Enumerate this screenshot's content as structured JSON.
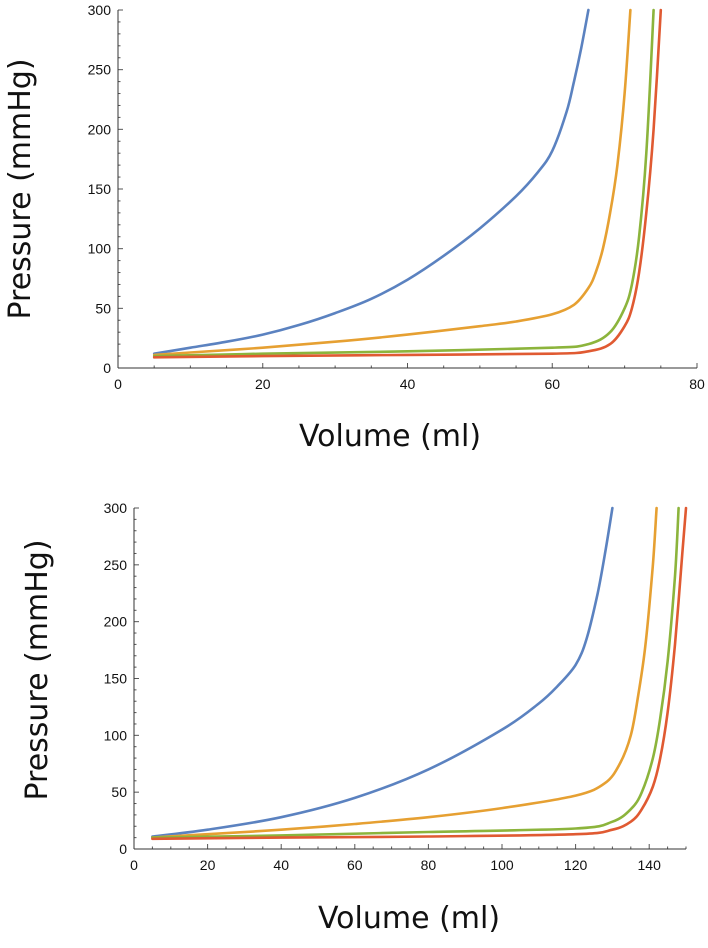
{
  "chart_data": [
    {
      "type": "line",
      "xlabel": "Volume (ml)",
      "ylabel": "Pressure (mmHg)",
      "xlim": [
        0,
        80
      ],
      "ylim": [
        0,
        300
      ],
      "xticks": [
        0,
        20,
        40,
        60,
        80
      ],
      "yticks": [
        0,
        50,
        100,
        150,
        200,
        250,
        300
      ],
      "series": [
        {
          "name": "blue",
          "color": "#5b82c0",
          "x": [
            5,
            10,
            15,
            20,
            25,
            30,
            35,
            40,
            45,
            50,
            55,
            58,
            60,
            62,
            63,
            64,
            65
          ],
          "y": [
            12,
            17,
            22,
            28,
            36,
            46,
            58,
            74,
            94,
            117,
            144,
            164,
            182,
            215,
            240,
            268,
            300
          ]
        },
        {
          "name": "orange",
          "color": "#e6a032",
          "x": [
            5,
            10,
            20,
            30,
            40,
            50,
            55,
            60,
            63,
            65,
            66,
            67,
            68,
            69,
            70,
            70.8
          ],
          "y": [
            11,
            13,
            17,
            22,
            28,
            35,
            39,
            45,
            53,
            67,
            80,
            100,
            130,
            170,
            230,
            300
          ]
        },
        {
          "name": "green",
          "color": "#8cb43c",
          "x": [
            5,
            20,
            40,
            60,
            65,
            68,
            70,
            71,
            72,
            73,
            74
          ],
          "y": [
            10,
            12,
            14,
            17,
            20,
            30,
            50,
            70,
            110,
            180,
            300
          ]
        },
        {
          "name": "red",
          "color": "#e05a32",
          "x": [
            5,
            20,
            40,
            60,
            65,
            68,
            70,
            71,
            72,
            73,
            74,
            75
          ],
          "y": [
            9,
            10,
            11,
            12,
            14,
            20,
            35,
            50,
            80,
            130,
            200,
            300
          ]
        }
      ]
    },
    {
      "type": "line",
      "xlabel": "Volume (ml)",
      "ylabel": "Pressure (mmHg)",
      "xlim": [
        0,
        150
      ],
      "ylim": [
        0,
        300
      ],
      "xticks": [
        0,
        20,
        40,
        60,
        80,
        100,
        120,
        140
      ],
      "yticks": [
        0,
        50,
        100,
        150,
        200,
        250,
        300
      ],
      "series": [
        {
          "name": "blue",
          "color": "#5b82c0",
          "x": [
            5,
            20,
            40,
            60,
            80,
            100,
            110,
            115,
            120,
            123,
            126,
            128,
            130
          ],
          "y": [
            11,
            17,
            28,
            45,
            70,
            105,
            128,
            143,
            162,
            185,
            225,
            260,
            300
          ]
        },
        {
          "name": "orange",
          "color": "#e6a032",
          "x": [
            5,
            20,
            40,
            60,
            80,
            100,
            120,
            128,
            132,
            135,
            137,
            139,
            141,
            142
          ],
          "y": [
            10,
            13,
            17,
            22,
            28,
            36,
            47,
            58,
            75,
            100,
            135,
            180,
            250,
            300
          ]
        },
        {
          "name": "green",
          "color": "#8cb43c",
          "x": [
            5,
            40,
            80,
            120,
            130,
            135,
            138,
            141,
            143,
            145,
            147,
            148
          ],
          "y": [
            10,
            12,
            15,
            18,
            24,
            35,
            50,
            80,
            115,
            165,
            240,
            300
          ]
        },
        {
          "name": "red",
          "color": "#e05a32",
          "x": [
            5,
            40,
            80,
            120,
            130,
            135,
            138,
            141,
            143,
            145,
            147,
            149,
            150
          ],
          "y": [
            9,
            10,
            11,
            13,
            17,
            24,
            35,
            55,
            80,
            120,
            180,
            260,
            300
          ]
        }
      ]
    }
  ]
}
